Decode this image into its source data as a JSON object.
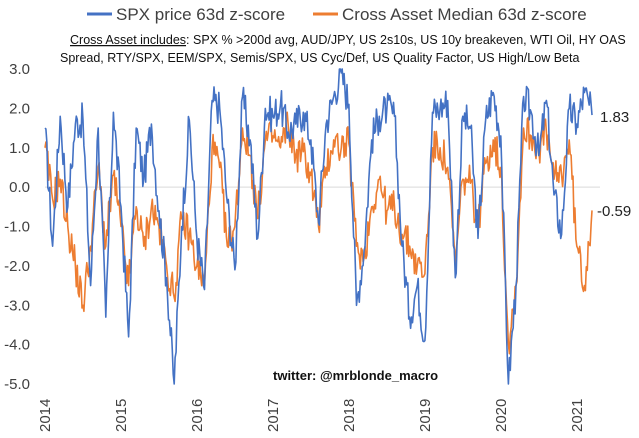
{
  "chart_data": {
    "type": "line",
    "title": "",
    "xlabel": "",
    "ylabel": "",
    "ylim": [
      -5.0,
      3.0
    ],
    "yticks": [
      "3.0",
      "2.0",
      "1.0",
      "0.0",
      "-1.0",
      "-2.0",
      "-3.0",
      "-4.0",
      "-5.0"
    ],
    "xticks": [
      "2014",
      "2015",
      "2016",
      "2017",
      "2018",
      "2019",
      "2020",
      "2021"
    ],
    "grid": false,
    "legend_position": "top",
    "zero_line": true,
    "series": [
      {
        "name": "SPX price 63d z-score",
        "color": "#4472C4",
        "x": [
          2014.0,
          2014.1,
          2014.2,
          2014.3,
          2014.4,
          2014.5,
          2014.6,
          2014.7,
          2014.8,
          2014.9,
          2015.0,
          2015.1,
          2015.2,
          2015.3,
          2015.4,
          2015.5,
          2015.6,
          2015.7,
          2015.8,
          2015.9,
          2016.0,
          2016.1,
          2016.2,
          2016.3,
          2016.4,
          2016.5,
          2016.6,
          2016.7,
          2016.8,
          2016.9,
          2017.0,
          2017.1,
          2017.2,
          2017.3,
          2017.4,
          2017.5,
          2017.6,
          2017.7,
          2017.8,
          2017.9,
          2018.0,
          2018.1,
          2018.2,
          2018.3,
          2018.4,
          2018.5,
          2018.6,
          2018.7,
          2018.8,
          2018.9,
          2019.0,
          2019.1,
          2019.2,
          2019.3,
          2019.4,
          2019.5,
          2019.6,
          2019.7,
          2019.8,
          2019.9,
          2020.0,
          2020.1,
          2020.2,
          2020.3,
          2020.4,
          2020.5,
          2020.6,
          2020.7,
          2020.8,
          2020.9,
          2021.0,
          2021.1,
          2021.2
        ],
        "y": [
          1.5,
          -1.5,
          1.8,
          -0.5,
          1.6,
          1.7,
          -2.5,
          1.5,
          -3.3,
          1.9,
          -0.5,
          -3.8,
          1.5,
          0.2,
          1.6,
          -0.6,
          -2.3,
          -5.0,
          -1.0,
          1.7,
          -1.3,
          -2.6,
          2.2,
          2.0,
          -0.4,
          -2.1,
          2.3,
          1.2,
          -1.3,
          2.0,
          1.8,
          2.1,
          1.4,
          1.6,
          1.9,
          1.2,
          -0.9,
          1.6,
          2.3,
          2.9,
          2.1,
          -3.0,
          -1.6,
          1.2,
          1.8,
          2.0,
          1.8,
          -1.5,
          -3.3,
          -2.5,
          -3.9,
          1.9,
          2.0,
          2.2,
          -2.3,
          1.8,
          1.5,
          -1.3,
          1.7,
          2.4,
          1.3,
          -5.0,
          -2.5,
          2.3,
          1.9,
          0.8,
          2.2,
          -0.2,
          -1.2,
          2.0,
          1.6,
          2.4,
          1.83
        ],
        "end_label": "1.83"
      },
      {
        "name": "Cross Asset Median 63d z-score",
        "color": "#ED7D31",
        "x": [
          2014.0,
          2014.1,
          2014.2,
          2014.3,
          2014.4,
          2014.5,
          2014.6,
          2014.7,
          2014.8,
          2014.9,
          2015.0,
          2015.1,
          2015.2,
          2015.3,
          2015.4,
          2015.5,
          2015.6,
          2015.7,
          2015.8,
          2015.9,
          2016.0,
          2016.1,
          2016.2,
          2016.3,
          2016.4,
          2016.5,
          2016.6,
          2016.7,
          2016.8,
          2016.9,
          2017.0,
          2017.1,
          2017.2,
          2017.3,
          2017.4,
          2017.5,
          2017.6,
          2017.7,
          2017.8,
          2017.9,
          2018.0,
          2018.1,
          2018.2,
          2018.3,
          2018.4,
          2018.5,
          2018.6,
          2018.7,
          2018.8,
          2018.9,
          2019.0,
          2019.1,
          2019.2,
          2019.3,
          2019.4,
          2019.5,
          2019.6,
          2019.7,
          2019.8,
          2019.9,
          2020.0,
          2020.1,
          2020.2,
          2020.3,
          2020.4,
          2020.5,
          2020.6,
          2020.7,
          2020.8,
          2020.9,
          2021.0,
          2021.1,
          2021.2
        ],
        "y": [
          1.0,
          -0.3,
          0.2,
          -1.0,
          -2.0,
          -3.0,
          -1.5,
          0.5,
          -1.5,
          0.3,
          -1.0,
          -2.5,
          -0.5,
          -1.5,
          -0.5,
          -1.0,
          -2.0,
          -2.8,
          -0.8,
          -1.2,
          -2.0,
          -2.5,
          1.0,
          0.5,
          -1.5,
          -1.0,
          1.5,
          0.8,
          -0.8,
          1.2,
          1.3,
          1.0,
          1.6,
          0.8,
          0.9,
          0.3,
          -1.0,
          0.5,
          1.2,
          1.0,
          1.1,
          -1.5,
          -1.8,
          -0.5,
          0.2,
          -0.6,
          -0.5,
          -1.2,
          -1.5,
          -2.0,
          -2.2,
          1.0,
          1.0,
          0.5,
          -2.0,
          0.2,
          0.1,
          -1.0,
          0.6,
          1.2,
          0.5,
          -4.0,
          -2.5,
          1.5,
          1.3,
          1.0,
          1.4,
          0.2,
          0.3,
          1.2,
          -1.5,
          -2.5,
          -0.59
        ],
        "end_label": "-0.59"
      }
    ]
  },
  "legend": {
    "spx_label": "SPX price 63d z-score",
    "cross_label": "Cross Asset Median 63d z-score"
  },
  "note": {
    "prefix": "Cross Asset includes",
    "line1_rest": ": SPX % >200d avg, AUD/JPY, US 2s10s, US 10y breakeven, WTI Oil, HY OAS",
    "line2": "Spread, RTY/SPX, EEM/SPX, Semis/SPX, US Cyc/Def, US Quality Factor, US High/Low Beta"
  },
  "watermark": "twitter: @mrblonde_macro"
}
